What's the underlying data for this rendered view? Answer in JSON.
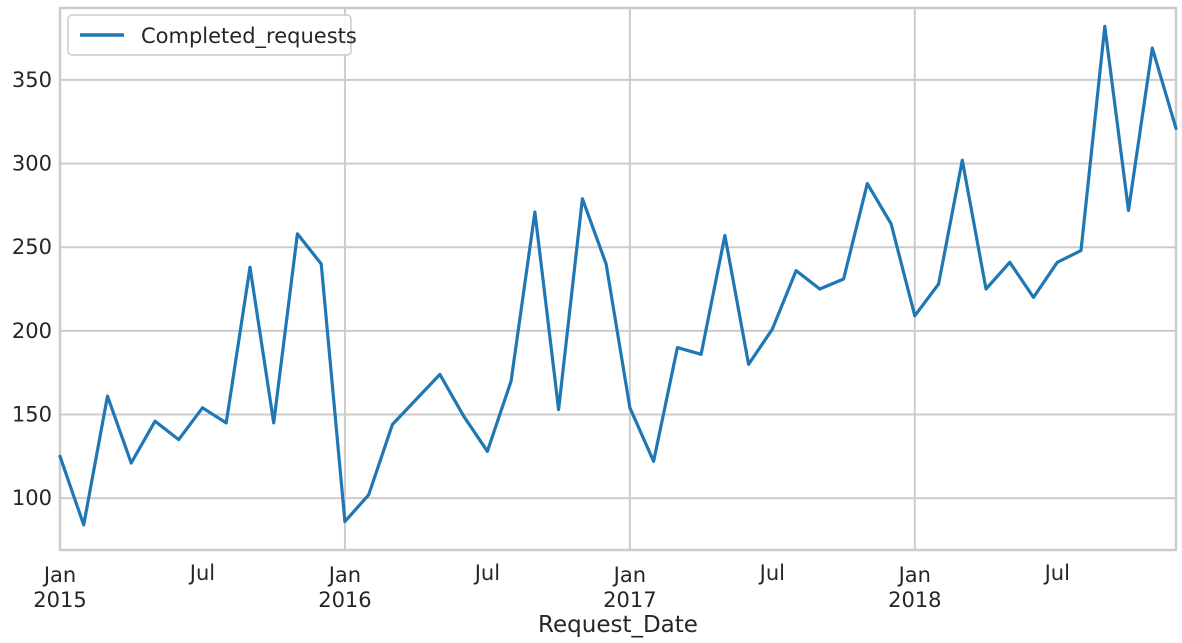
{
  "chart_data": {
    "type": "line",
    "title": "",
    "xlabel": "Request_Date",
    "ylabel": "",
    "grid": true,
    "legend_position": "top-left",
    "x_tick_labels": [
      {
        "date": "2015-01",
        "line1": "Jan",
        "line2": "2015"
      },
      {
        "date": "2015-07",
        "line1": "Jul",
        "line2": ""
      },
      {
        "date": "2016-01",
        "line1": "Jan",
        "line2": "2016"
      },
      {
        "date": "2016-07",
        "line1": "Jul",
        "line2": ""
      },
      {
        "date": "2017-01",
        "line1": "Jan",
        "line2": "2017"
      },
      {
        "date": "2017-07",
        "line1": "Jul",
        "line2": ""
      },
      {
        "date": "2018-01",
        "line1": "Jan",
        "line2": "2018"
      },
      {
        "date": "2018-07",
        "line1": "Jul",
        "line2": ""
      }
    ],
    "y_ticks": [
      100,
      150,
      200,
      250,
      300,
      350
    ],
    "xlim": [
      "2015-01",
      "2018-12"
    ],
    "ylim": [
      69,
      393
    ],
    "x": [
      "2015-01",
      "2015-02",
      "2015-03",
      "2015-04",
      "2015-05",
      "2015-06",
      "2015-07",
      "2015-08",
      "2015-09",
      "2015-10",
      "2015-11",
      "2015-12",
      "2016-01",
      "2016-02",
      "2016-03",
      "2016-04",
      "2016-05",
      "2016-06",
      "2016-07",
      "2016-08",
      "2016-09",
      "2016-10",
      "2016-11",
      "2016-12",
      "2017-01",
      "2017-02",
      "2017-03",
      "2017-04",
      "2017-05",
      "2017-06",
      "2017-07",
      "2017-08",
      "2017-09",
      "2017-10",
      "2017-11",
      "2017-12",
      "2018-01",
      "2018-02",
      "2018-03",
      "2018-04",
      "2018-05",
      "2018-06",
      "2018-07",
      "2018-08",
      "2018-09",
      "2018-10",
      "2018-11",
      "2018-12"
    ],
    "series": [
      {
        "name": "Completed_requests",
        "color": "#1f77b4",
        "values": [
          125,
          84,
          161,
          121,
          146,
          135,
          154,
          145,
          238,
          145,
          258,
          240,
          86,
          102,
          144,
          159,
          174,
          149,
          128,
          170,
          271,
          153,
          279,
          240,
          154,
          122,
          190,
          186,
          257,
          180,
          201,
          236,
          225,
          231,
          288,
          264,
          209,
          228,
          302,
          225,
          241,
          220,
          241,
          248,
          382,
          272,
          369,
          321
        ]
      }
    ]
  }
}
